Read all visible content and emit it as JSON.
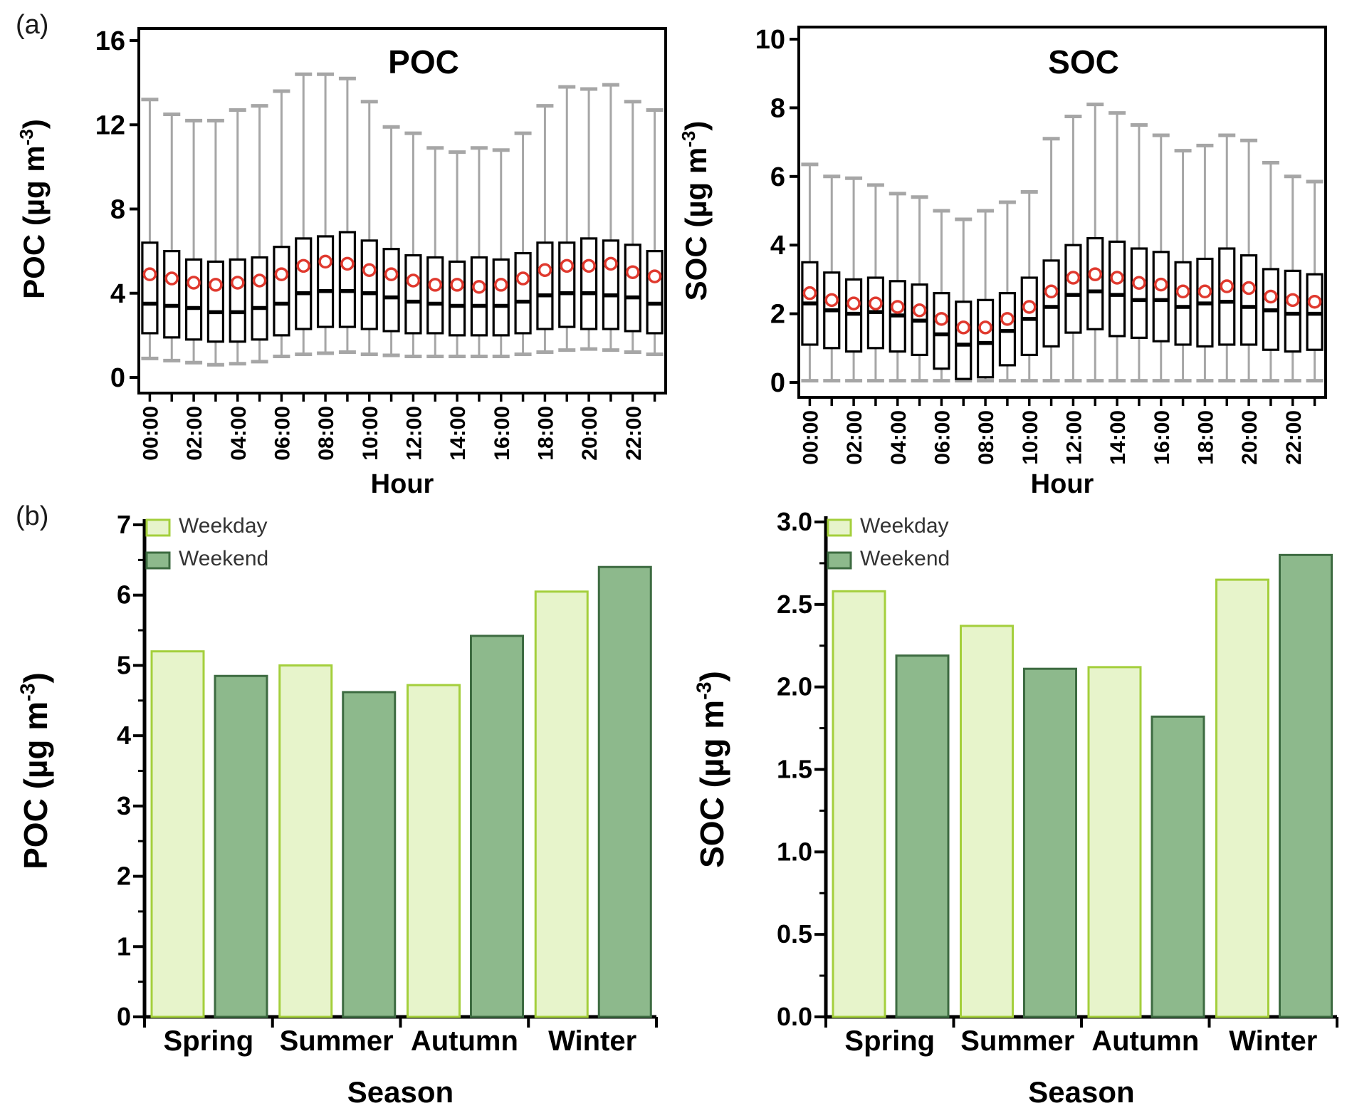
{
  "panels": {
    "a": {
      "label": "(a)"
    },
    "b": {
      "label": "(b)"
    }
  },
  "colors": {
    "box_border": "#000000",
    "box_fill": "#ffffff",
    "whisker": "#a6a6a6",
    "mean_marker": "#e0392e",
    "weekday_fill": "#e7f4cb",
    "weekday_border": "#a4cf3c",
    "weekend_fill": "#8db98c",
    "weekend_border": "#3d6b41",
    "axis": "#000000",
    "legend_text": "#333333"
  },
  "chart_data": [
    {
      "id": "poc_diurnal",
      "type": "boxplot",
      "title": "POC",
      "ylabel": {
        "pre": "POC  (µg m",
        "sup": "-3",
        "post": ")"
      },
      "xlabel": "Hour",
      "ylim": [
        0,
        16
      ],
      "yticks": [
        0,
        4,
        8,
        12,
        16
      ],
      "ytick_labels": [
        "0",
        "4",
        "8",
        "12",
        "16"
      ],
      "x_categories": [
        "00:00",
        "01:00",
        "02:00",
        "03:00",
        "04:00",
        "05:00",
        "06:00",
        "07:00",
        "08:00",
        "09:00",
        "10:00",
        "11:00",
        "12:00",
        "13:00",
        "14:00",
        "15:00",
        "16:00",
        "17:00",
        "18:00",
        "19:00",
        "20:00",
        "21:00",
        "22:00",
        "23:00"
      ],
      "xtick_label_every": 2,
      "boxes": {
        "whisker_low": [
          0.9,
          0.8,
          0.7,
          0.6,
          0.65,
          0.75,
          1.0,
          1.1,
          1.15,
          1.2,
          1.1,
          1.05,
          1.0,
          1.0,
          1.0,
          1.0,
          1.0,
          1.1,
          1.2,
          1.3,
          1.35,
          1.3,
          1.2,
          1.1
        ],
        "q1": [
          2.1,
          1.9,
          1.8,
          1.7,
          1.7,
          1.8,
          2.0,
          2.3,
          2.4,
          2.4,
          2.3,
          2.2,
          2.1,
          2.1,
          2.0,
          2.0,
          2.0,
          2.1,
          2.3,
          2.4,
          2.3,
          2.3,
          2.2,
          2.1
        ],
        "median": [
          3.5,
          3.4,
          3.3,
          3.1,
          3.1,
          3.3,
          3.5,
          4.0,
          4.1,
          4.1,
          4.0,
          3.8,
          3.6,
          3.5,
          3.4,
          3.4,
          3.4,
          3.6,
          3.9,
          4.0,
          4.0,
          3.9,
          3.8,
          3.5
        ],
        "q3": [
          6.4,
          6.0,
          5.6,
          5.5,
          5.6,
          5.7,
          6.2,
          6.6,
          6.7,
          6.9,
          6.5,
          6.1,
          5.8,
          5.7,
          5.5,
          5.7,
          5.6,
          5.9,
          6.4,
          6.4,
          6.6,
          6.5,
          6.3,
          6.0
        ],
        "whisker_high": [
          13.2,
          12.5,
          12.2,
          12.2,
          12.7,
          12.9,
          13.6,
          14.4,
          14.4,
          14.2,
          13.1,
          11.9,
          11.6,
          10.9,
          10.7,
          10.9,
          10.8,
          11.6,
          12.9,
          13.8,
          13.7,
          13.9,
          13.1,
          12.7
        ],
        "mean": [
          4.9,
          4.7,
          4.5,
          4.4,
          4.5,
          4.6,
          4.9,
          5.3,
          5.5,
          5.4,
          5.1,
          4.9,
          4.6,
          4.4,
          4.4,
          4.3,
          4.4,
          4.7,
          5.1,
          5.3,
          5.3,
          5.4,
          5.0,
          4.8
        ]
      }
    },
    {
      "id": "soc_diurnal",
      "type": "boxplot",
      "title": "SOC",
      "ylabel": {
        "pre": "SOC  (µg m",
        "sup": "-3",
        "post": ")"
      },
      "xlabel": "Hour",
      "ylim": [
        0,
        10
      ],
      "yticks": [
        0,
        2,
        4,
        6,
        8,
        10
      ],
      "ytick_labels": [
        "0",
        "2",
        "4",
        "6",
        "8",
        "10"
      ],
      "x_categories": [
        "00:00",
        "01:00",
        "02:00",
        "03:00",
        "04:00",
        "05:00",
        "06:00",
        "07:00",
        "08:00",
        "09:00",
        "10:00",
        "11:00",
        "12:00",
        "13:00",
        "14:00",
        "15:00",
        "16:00",
        "17:00",
        "18:00",
        "19:00",
        "20:00",
        "21:00",
        "22:00",
        "23:00"
      ],
      "xtick_label_every": 2,
      "boxes": {
        "whisker_low": [
          0.05,
          0.05,
          0.05,
          0.05,
          0.05,
          0.05,
          0.05,
          0.05,
          0.05,
          0.05,
          0.05,
          0.05,
          0.05,
          0.05,
          0.05,
          0.05,
          0.05,
          0.05,
          0.05,
          0.05,
          0.05,
          0.05,
          0.05,
          0.05
        ],
        "q1": [
          1.1,
          1.0,
          0.9,
          1.0,
          0.9,
          0.8,
          0.4,
          0.1,
          0.15,
          0.5,
          0.8,
          1.05,
          1.45,
          1.55,
          1.35,
          1.3,
          1.2,
          1.1,
          1.05,
          1.1,
          1.1,
          0.95,
          0.9,
          0.95
        ],
        "median": [
          2.3,
          2.1,
          2.0,
          2.05,
          1.95,
          1.8,
          1.4,
          1.1,
          1.15,
          1.5,
          1.85,
          2.2,
          2.55,
          2.65,
          2.55,
          2.4,
          2.4,
          2.2,
          2.3,
          2.35,
          2.2,
          2.1,
          2.0,
          2.0
        ],
        "q3": [
          3.5,
          3.2,
          3.0,
          3.05,
          2.95,
          2.85,
          2.6,
          2.35,
          2.4,
          2.6,
          3.05,
          3.55,
          4.0,
          4.2,
          4.1,
          3.9,
          3.8,
          3.5,
          3.6,
          3.9,
          3.7,
          3.3,
          3.25,
          3.15
        ],
        "whisker_high": [
          6.35,
          6.0,
          5.95,
          5.75,
          5.5,
          5.4,
          5.0,
          4.75,
          5.0,
          5.25,
          5.55,
          7.1,
          7.75,
          8.1,
          7.85,
          7.5,
          7.2,
          6.75,
          6.9,
          7.2,
          7.05,
          6.4,
          6.0,
          5.85
        ],
        "mean": [
          2.6,
          2.4,
          2.3,
          2.3,
          2.2,
          2.1,
          1.85,
          1.6,
          1.6,
          1.85,
          2.2,
          2.65,
          3.05,
          3.15,
          3.05,
          2.9,
          2.85,
          2.65,
          2.65,
          2.8,
          2.75,
          2.5,
          2.4,
          2.35
        ]
      }
    },
    {
      "id": "poc_seasonal",
      "type": "bar",
      "ylabel": {
        "pre": "POC  (µg m",
        "sup": "-3",
        "post": ")"
      },
      "xlabel": "Season",
      "categories": [
        "Spring",
        "Summer",
        "Autumn",
        "Winter"
      ],
      "series": [
        {
          "name": "Weekday",
          "values": [
            5.2,
            5.0,
            4.72,
            6.05
          ]
        },
        {
          "name": "Weekend",
          "values": [
            4.85,
            4.62,
            5.42,
            6.4
          ]
        }
      ],
      "ylim": [
        0,
        7
      ],
      "yticks": [
        0,
        1,
        2,
        3,
        4,
        5,
        6,
        7
      ],
      "ytick_labels": [
        "0",
        "1",
        "2",
        "3",
        "4",
        "5",
        "6",
        "7"
      ],
      "minor_step": 0.5,
      "legend": [
        "Weekday",
        "Weekend"
      ]
    },
    {
      "id": "soc_seasonal",
      "type": "bar",
      "ylabel": {
        "pre": "SOC  (µg m",
        "sup": "-3",
        "post": ")"
      },
      "xlabel": "Season",
      "categories": [
        "Spring",
        "Summer",
        "Autumn",
        "Winter"
      ],
      "series": [
        {
          "name": "Weekday",
          "values": [
            2.58,
            2.37,
            2.12,
            2.65
          ]
        },
        {
          "name": "Weekend",
          "values": [
            2.19,
            2.11,
            1.82,
            2.8
          ]
        }
      ],
      "ylim": [
        0,
        3
      ],
      "yticks": [
        0,
        0.5,
        1.0,
        1.5,
        2.0,
        2.5,
        3.0
      ],
      "ytick_labels": [
        "0.0",
        "0.5",
        "1.0",
        "1.5",
        "2.0",
        "2.5",
        "3.0"
      ],
      "minor_step": 0.25,
      "legend": [
        "Weekday",
        "Weekend"
      ]
    }
  ]
}
